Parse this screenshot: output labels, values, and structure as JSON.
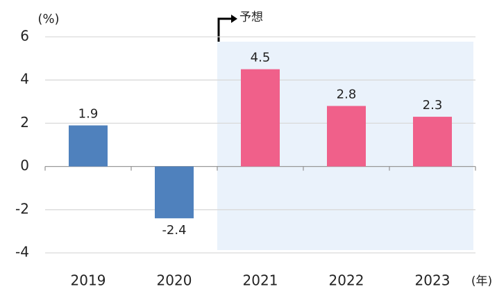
{
  "chart_data": {
    "type": "bar",
    "y_axis_label": "(%)",
    "x_axis_label": "(年)",
    "annotation": {
      "text": "予想",
      "category": "2021"
    },
    "categories": [
      "2019",
      "2020",
      "2021",
      "2022",
      "2023"
    ],
    "values": [
      1.9,
      -2.4,
      4.5,
      2.8,
      2.3
    ],
    "colors": [
      "#4f81bd",
      "#4f81bd",
      "#f0608a",
      "#f0608a",
      "#f0608a"
    ],
    "ylim": [
      -4,
      6
    ],
    "yticks": [
      -4,
      -2,
      0,
      2,
      4,
      6
    ],
    "grid": true
  }
}
